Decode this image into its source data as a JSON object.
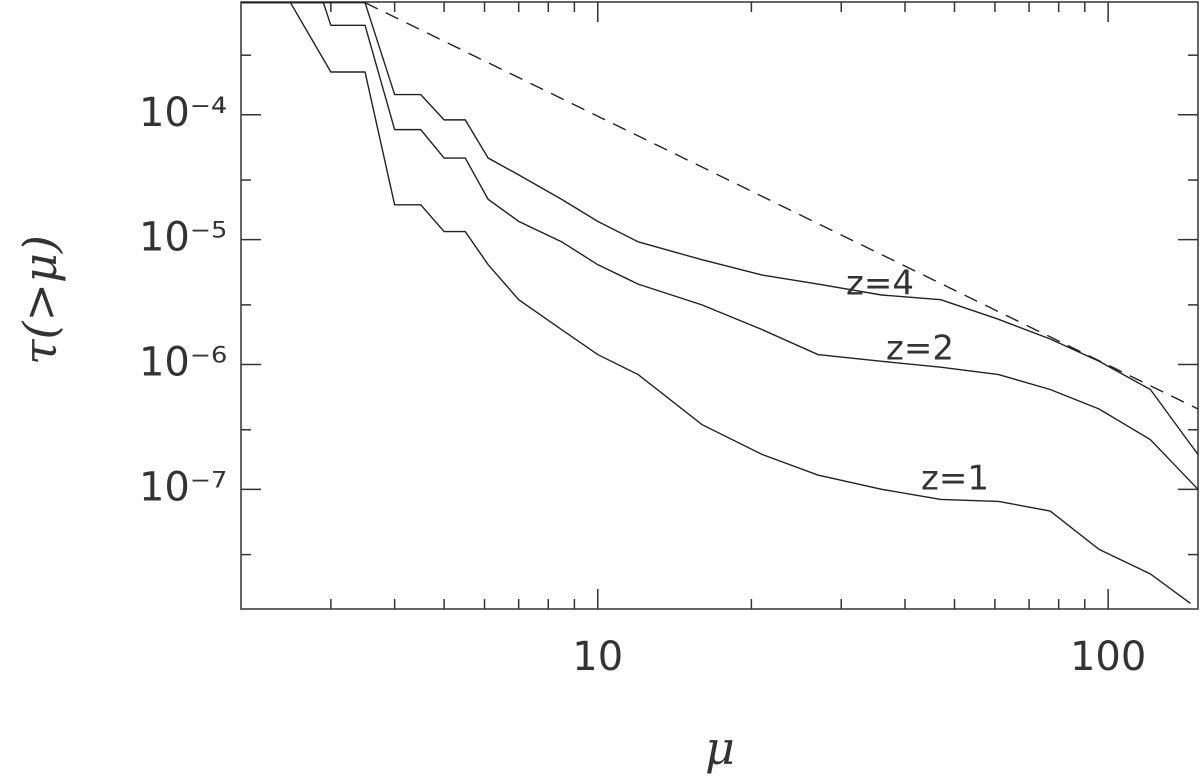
{
  "chart_data": {
    "type": "line",
    "x_label": "μ",
    "y_label": "τ(>μ)",
    "xscale": "log",
    "yscale": "log",
    "xlim": [
      2,
      150
    ],
    "ylim": [
      1.1e-08,
      0.0008
    ],
    "xticks": [
      10,
      100
    ],
    "yticks": [
      {
        "value": 0.0001,
        "label": "10⁻⁴"
      },
      {
        "value": 1e-05,
        "label": "10⁻⁵"
      },
      {
        "value": 1e-06,
        "label": "10⁻⁶"
      },
      {
        "value": 1e-07,
        "label": "10⁻⁷"
      }
    ],
    "x_minor_ticks": [
      3,
      4,
      5,
      6,
      7,
      8,
      9,
      20,
      30,
      40,
      50,
      60,
      70,
      80,
      90
    ],
    "y_minor_ticks": [
      0.0003,
      3e-05,
      3e-06,
      3e-07,
      3e-08
    ],
    "grid": false,
    "series": [
      {
        "name": "z=4",
        "color": "#222",
        "linestyle": "solid",
        "x": [
          2,
          3.5,
          4,
          4.5,
          5,
          5.5,
          6.1,
          7,
          8.5,
          10,
          12,
          16,
          21,
          27,
          36,
          47,
          61,
          77,
          96,
          121,
          150
        ],
        "values": [
          0.00079,
          0.00079,
          0.000145,
          0.000145,
          9.1e-05,
          9.1e-05,
          4.5e-05,
          3.3e-05,
          2.1e-05,
          1.4e-05,
          9.6e-06,
          6.9e-06,
          5.2e-06,
          4.4e-06,
          3.6e-06,
          3.3e-06,
          2.3e-06,
          1.6e-06,
          1.06e-06,
          6.3e-07,
          1.9e-07
        ]
      },
      {
        "name": "z=2",
        "color": "#222",
        "linestyle": "solid",
        "x": [
          2,
          2.9,
          3,
          3.5,
          4,
          4.5,
          5,
          5.5,
          6.1,
          7,
          8.5,
          10,
          12,
          16,
          21,
          27,
          36,
          47,
          61,
          77,
          96,
          121,
          150
        ],
        "values": [
          0.00079,
          0.00079,
          0.00052,
          0.00052,
          7.6e-05,
          7.6e-05,
          4.5e-05,
          4.5e-05,
          2.1e-05,
          1.4e-05,
          9.6e-06,
          6.3e-06,
          4.4e-06,
          3e-06,
          1.9e-06,
          1.2e-06,
          1.06e-06,
          9.5e-07,
          8.3e-07,
          6.3e-07,
          4.4e-07,
          2.5e-07,
          1e-07
        ]
      },
      {
        "name": "z=1",
        "color": "#222",
        "linestyle": "solid",
        "x": [
          2,
          2.5,
          3,
          3.5,
          4,
          4.5,
          5,
          5.5,
          6.1,
          7,
          8.5,
          10,
          12,
          16,
          21,
          27,
          36,
          47,
          61,
          77,
          96,
          121,
          145
        ],
        "values": [
          0.00079,
          0.00079,
          0.00022,
          0.00022,
          1.9e-05,
          1.9e-05,
          1.16e-05,
          1.16e-05,
          6.3e-06,
          3.3e-06,
          1.9e-06,
          1.2e-06,
          8.3e-07,
          3.3e-07,
          1.9e-07,
          1.3e-07,
          1e-07,
          8.3e-08,
          8e-08,
          6.7e-08,
          3.3e-08,
          2.1e-08,
          1.22e-08
        ]
      },
      {
        "color": "#222",
        "linestyle": "dashed",
        "x": [
          3.5,
          150
        ],
        "values": [
          0.00079,
          4.4e-07
        ]
      }
    ]
  }
}
